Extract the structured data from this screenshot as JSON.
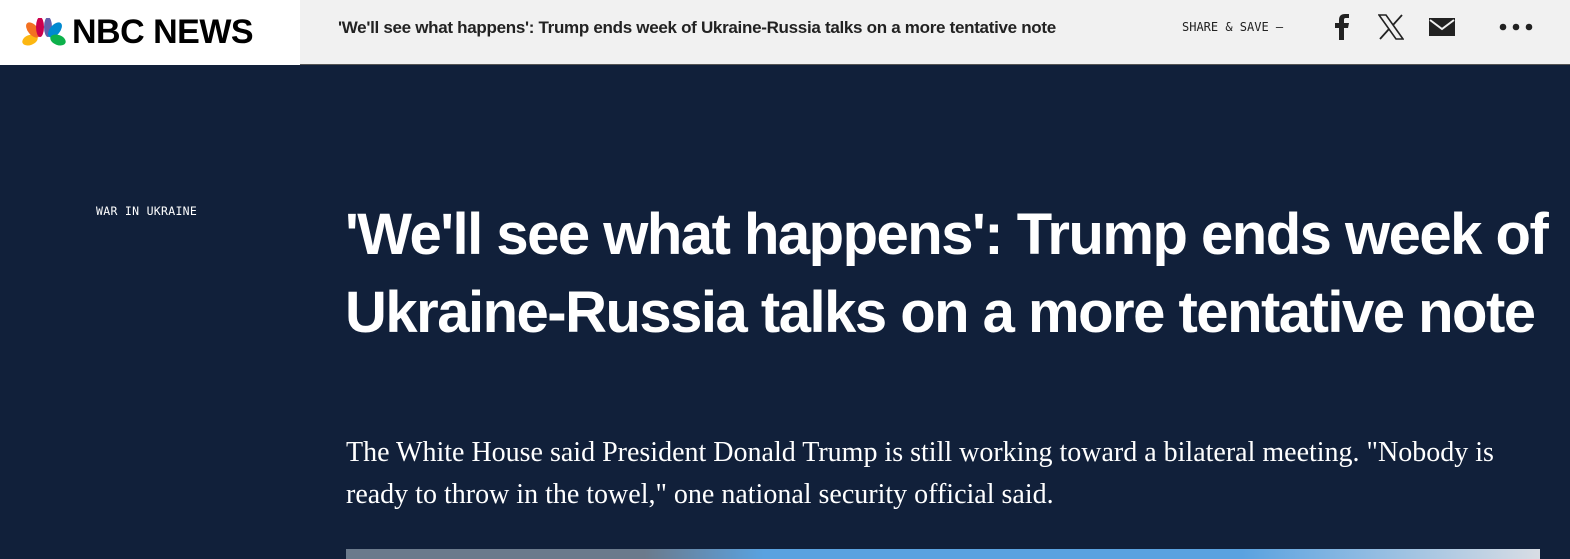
{
  "header": {
    "logo_text": "NBC NEWS",
    "title": "'We'll see what happens': Trump ends week of Ukraine-Russia talks on a more tentative note",
    "share_label": "SHARE & SAVE —",
    "icons": [
      "facebook-icon",
      "x-icon",
      "email-icon",
      "more-icon"
    ]
  },
  "article": {
    "eyebrow": "WAR IN UKRAINE",
    "headline": "'We'll see what happens': Trump ends week of Ukraine-Russia talks on a more tentative note",
    "dek": "The White House said President Donald Trump is still working toward a bilateral meeting. \"Nobody is ready to throw in the towel,\" one national security official said."
  },
  "colors": {
    "background": "#11203a",
    "topbar": "#f1f1f1"
  }
}
